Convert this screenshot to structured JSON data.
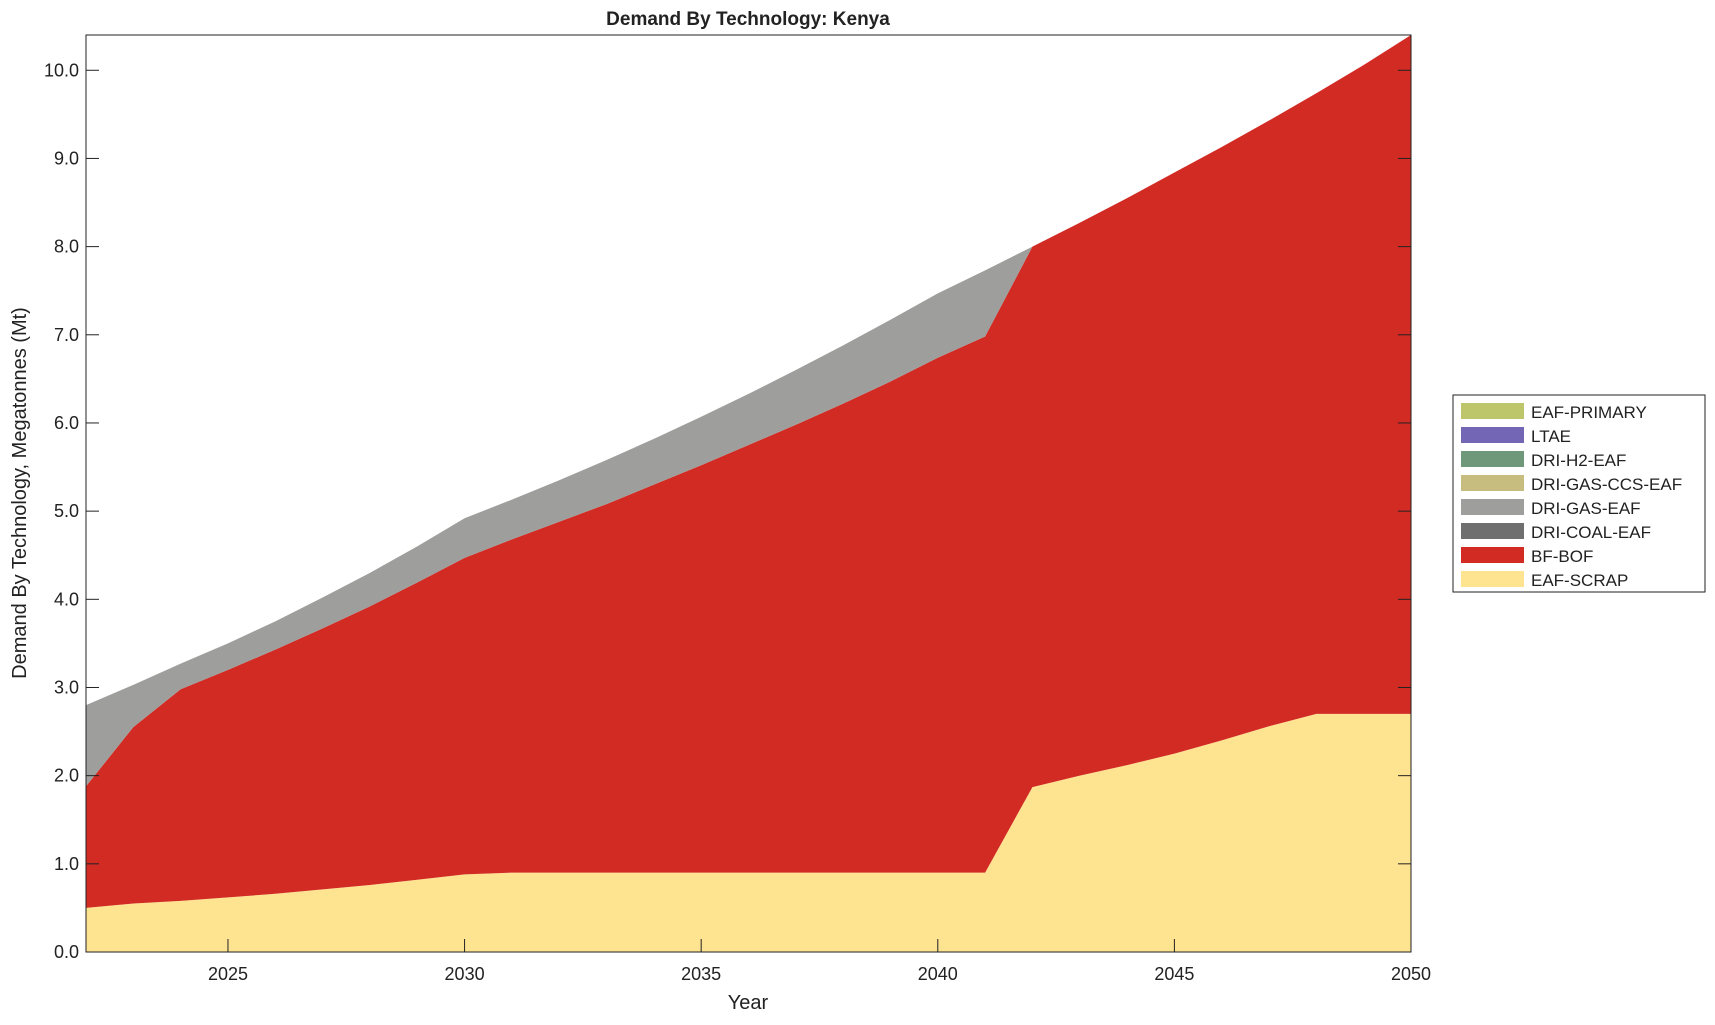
{
  "chart_data": {
    "type": "area",
    "stacked": true,
    "title": "Demand By Technology: Kenya",
    "xlabel": "Year",
    "ylabel": "Demand By Technology, Megatonnes (Mt)",
    "xlim": [
      2022,
      2050
    ],
    "ylim": [
      0,
      10.4
    ],
    "xticks": [
      2025,
      2030,
      2035,
      2040,
      2045,
      2050
    ],
    "xtick_labels": [
      "2025",
      "2030",
      "2035",
      "2040",
      "2045",
      "2050"
    ],
    "yticks": [
      0,
      1,
      2,
      3,
      4,
      5,
      6,
      7,
      8,
      9,
      10
    ],
    "ytick_labels": [
      "0.0",
      "1.0",
      "2.0",
      "3.0",
      "4.0",
      "5.0",
      "6.0",
      "7.0",
      "8.0",
      "9.0",
      "10.0"
    ],
    "grid": false,
    "legend_position": "right",
    "x": [
      2022,
      2023,
      2024,
      2025,
      2026,
      2027,
      2028,
      2029,
      2030,
      2031,
      2032,
      2033,
      2034,
      2035,
      2036,
      2037,
      2038,
      2039,
      2040,
      2041,
      2042,
      2043,
      2044,
      2045,
      2046,
      2047,
      2048,
      2049,
      2050
    ],
    "series": [
      {
        "name": "EAF-SCRAP",
        "color": "#FEE391",
        "values": [
          0.5,
          0.55,
          0.58,
          0.62,
          0.66,
          0.71,
          0.76,
          0.82,
          0.88,
          0.9,
          0.9,
          0.9,
          0.9,
          0.9,
          0.9,
          0.9,
          0.9,
          0.9,
          0.9,
          0.9,
          1.87,
          2.0,
          2.12,
          2.25,
          2.4,
          2.56,
          2.7,
          2.7,
          2.7
        ]
      },
      {
        "name": "BF-BOF",
        "color": "#D22B24",
        "values": [
          1.38,
          2.0,
          2.4,
          2.58,
          2.77,
          2.96,
          3.16,
          3.37,
          3.59,
          3.78,
          3.98,
          4.18,
          4.4,
          4.62,
          4.85,
          5.08,
          5.32,
          5.57,
          5.84,
          6.08,
          6.13,
          6.27,
          6.43,
          6.59,
          6.73,
          6.87,
          7.04,
          7.36,
          7.7
        ]
      },
      {
        "name": "DRI-COAL-EAF",
        "color": "#6F6F6F",
        "values": [
          0,
          0,
          0,
          0,
          0,
          0,
          0,
          0,
          0,
          0,
          0,
          0,
          0,
          0,
          0,
          0,
          0,
          0,
          0,
          0,
          0,
          0,
          0,
          0,
          0,
          0,
          0,
          0,
          0
        ]
      },
      {
        "name": "DRI-GAS-EAF",
        "color": "#9E9E9C",
        "values": [
          0.92,
          0.48,
          0.29,
          0.3,
          0.32,
          0.35,
          0.38,
          0.41,
          0.45,
          0.45,
          0.47,
          0.5,
          0.52,
          0.55,
          0.58,
          0.62,
          0.66,
          0.7,
          0.73,
          0.75,
          0,
          0,
          0,
          0,
          0,
          0,
          0,
          0,
          0
        ]
      },
      {
        "name": "DRI-GAS-CCS-EAF",
        "color": "#C6BD7E",
        "values": [
          0,
          0,
          0,
          0,
          0,
          0,
          0,
          0,
          0,
          0,
          0,
          0,
          0,
          0,
          0,
          0,
          0,
          0,
          0,
          0,
          0,
          0,
          0,
          0,
          0,
          0,
          0,
          0,
          0
        ]
      },
      {
        "name": "DRI-H2-EAF",
        "color": "#6F977A",
        "values": [
          0,
          0,
          0,
          0,
          0,
          0,
          0,
          0,
          0,
          0,
          0,
          0,
          0,
          0,
          0,
          0,
          0,
          0,
          0,
          0,
          0,
          0,
          0,
          0,
          0,
          0,
          0,
          0,
          0
        ]
      },
      {
        "name": "LTAE",
        "color": "#7367B5",
        "values": [
          0,
          0,
          0,
          0,
          0,
          0,
          0,
          0,
          0,
          0,
          0,
          0,
          0,
          0,
          0,
          0,
          0,
          0,
          0,
          0,
          0,
          0,
          0,
          0,
          0,
          0,
          0,
          0,
          0
        ]
      },
      {
        "name": "EAF-PRIMARY",
        "color": "#BDC66B",
        "values": [
          0,
          0,
          0,
          0,
          0,
          0,
          0,
          0,
          0,
          0,
          0,
          0,
          0,
          0,
          0,
          0,
          0,
          0,
          0,
          0,
          0,
          0,
          0,
          0,
          0,
          0,
          0,
          0,
          0
        ]
      }
    ]
  }
}
